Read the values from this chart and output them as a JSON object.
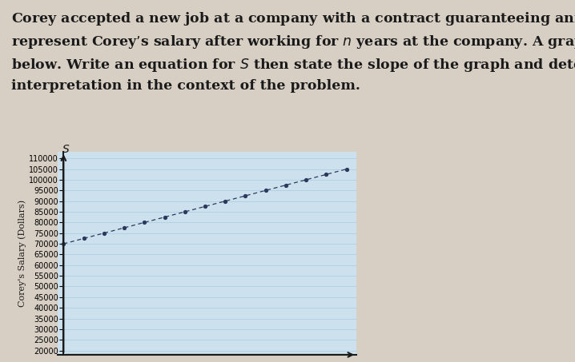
{
  "ylabel": "Corey's Salary (Dollars)",
  "y_intercept": 70000,
  "slope": 2500,
  "x_start": 0,
  "x_end": 14,
  "yticks": [
    20000,
    25000,
    30000,
    35000,
    40000,
    45000,
    50000,
    55000,
    60000,
    65000,
    70000,
    75000,
    80000,
    85000,
    90000,
    95000,
    100000,
    105000,
    110000
  ],
  "ymin": 20000,
  "ymax": 113000,
  "xmin": -0.3,
  "xmax": 14.5,
  "line_color": "#2b3a5c",
  "dot_color": "#2b3a5c",
  "grid_color": "#a8cce0",
  "graph_bg": "#cce0ee",
  "page_bg": "#d8cfc4",
  "text_color": "#1a1a1a",
  "title_fontsize": 12.5,
  "axis_label_fontsize": 8,
  "tick_fontsize": 7,
  "title_lines": [
    "Corey accepted a new job at a company with a contract guaranteeing annual raises. Let S",
    "represent Corey’s salary after working for n years at the company. A graph of S is shown",
    "below. Write an equation for S then state the slope of the graph and determine its",
    "interpretation in the context of the problem."
  ]
}
